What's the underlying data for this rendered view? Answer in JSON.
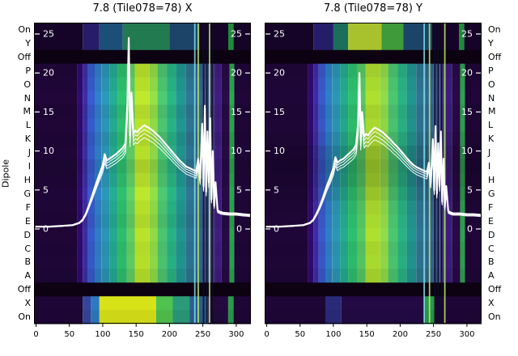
{
  "figure": {
    "background": "#ffffff",
    "dipole_axis_label": "Dipole"
  },
  "chart_data": [
    {
      "type": "heatmap",
      "title": "7.8 (Tile078=78) X",
      "xlabel": "",
      "ylabel": "Dipole",
      "xlim": [
        -3,
        322
      ],
      "x_ticks": [
        0,
        50,
        100,
        150,
        200,
        250,
        300
      ],
      "y_ticks": [
        25,
        20,
        15,
        10,
        5,
        0
      ],
      "line_ylim": [
        -12.2,
        26.5
      ],
      "legend": "none",
      "row_labels": [
        "On",
        "Y",
        "Off",
        "P",
        "O",
        "N",
        "M",
        "L",
        "K",
        "J",
        "I",
        "H",
        "G",
        "F",
        "E",
        "D",
        "C",
        "B",
        "A",
        "Off",
        "X",
        "On"
      ],
      "heat": {
        "off_color": "#0d0212",
        "row_shade": [
          1,
          1,
          1,
          0.95,
          1,
          1.05,
          0.97,
          1.02,
          0.95,
          1,
          0.92,
          0.97,
          1.04,
          1,
          0.96,
          1.02,
          0.98,
          1,
          0.94,
          1,
          1,
          0.95
        ],
        "main_segments": [
          [
            -3,
            62,
            "#1e0636"
          ],
          [
            62,
            70,
            "#2f0a6e"
          ],
          [
            70,
            78,
            "#3a2ba0"
          ],
          [
            78,
            88,
            "#3558c7"
          ],
          [
            88,
            98,
            "#2e7bc0"
          ],
          [
            98,
            110,
            "#2992b0"
          ],
          [
            110,
            122,
            "#23a68c"
          ],
          [
            122,
            136,
            "#2cb96a"
          ],
          [
            136,
            148,
            "#5ec962"
          ],
          [
            148,
            170,
            "#b5de2b"
          ],
          [
            170,
            182,
            "#8ed645"
          ],
          [
            182,
            196,
            "#4ac16d"
          ],
          [
            196,
            210,
            "#28ae80"
          ],
          [
            210,
            224,
            "#21918c"
          ],
          [
            224,
            238,
            "#2c728e"
          ],
          [
            238,
            250,
            "#33628d"
          ],
          [
            250,
            260,
            "#3b518b"
          ],
          [
            260,
            268,
            "#453781"
          ],
          [
            268,
            278,
            "#3d1c7a"
          ],
          [
            278,
            290,
            "#260a44"
          ],
          [
            290,
            297,
            "#2aa04a"
          ],
          [
            297,
            322,
            "#1e0636"
          ]
        ],
        "top_segments": [
          [
            -3,
            70,
            "#160428"
          ],
          [
            70,
            95,
            "#251d68"
          ],
          [
            95,
            130,
            "#1c4f78"
          ],
          [
            130,
            200,
            "#227a50"
          ],
          [
            200,
            245,
            "#1c4468"
          ],
          [
            245,
            288,
            "#160428"
          ],
          [
            288,
            296,
            "#1f8a3a"
          ],
          [
            296,
            322,
            "#160428"
          ]
        ],
        "bottom_segments": [
          [
            -3,
            70,
            "#1e0636"
          ],
          [
            70,
            82,
            "#34459c"
          ],
          [
            82,
            95,
            "#2e79c0"
          ],
          [
            95,
            180,
            "#d8e219"
          ],
          [
            180,
            205,
            "#50c24e"
          ],
          [
            205,
            230,
            "#2a9a7a"
          ],
          [
            230,
            258,
            "#2c5e8e"
          ],
          [
            258,
            288,
            "#22093e"
          ],
          [
            288,
            296,
            "#2a9a4a"
          ],
          [
            296,
            322,
            "#1e0636"
          ]
        ],
        "vlines": [
          [
            238,
            "#7fe0e8"
          ],
          [
            243,
            "#b8f06a"
          ],
          [
            251,
            "#0d0d26"
          ],
          [
            256,
            "#0d0d26"
          ],
          [
            260,
            "#b8f06a"
          ],
          [
            264,
            "#0d0d26"
          ]
        ]
      },
      "line": {
        "color": "#ffffff",
        "bundle": [
          1,
          0.96,
          0.92,
          0.88
        ],
        "x": [
          0,
          20,
          40,
          55,
          65,
          70,
          75,
          80,
          85,
          90,
          95,
          100,
          103,
          106,
          110,
          115,
          120,
          125,
          130,
          134,
          137,
          139,
          141,
          143,
          146,
          149,
          152,
          155,
          158,
          162,
          166,
          170,
          175,
          180,
          185,
          190,
          195,
          200,
          205,
          210,
          215,
          220,
          225,
          230,
          235,
          240,
          243,
          246,
          249,
          251,
          253,
          255,
          257,
          259,
          261,
          263,
          265,
          267,
          269,
          272,
          276,
          280,
          290,
          300,
          310,
          322
        ],
        "y": [
          0.3,
          0.3,
          0.4,
          0.5,
          0.8,
          1.2,
          2,
          3.2,
          4.5,
          5.8,
          7,
          8.2,
          9.6,
          8.8,
          9,
          9.3,
          9.6,
          10,
          10.4,
          11,
          16,
          24.5,
          12,
          17.5,
          12.2,
          12.6,
          12.4,
          12.8,
          13,
          13.3,
          13.1,
          12.9,
          12.6,
          12.2,
          11.8,
          11.3,
          10.8,
          10.3,
          9.8,
          9.3,
          8.8,
          8.4,
          8,
          7.8,
          7.6,
          7.4,
          9,
          6.5,
          13.5,
          5.5,
          15.8,
          4.8,
          12.5,
          6,
          14.2,
          3.8,
          10,
          3,
          6,
          2.4,
          2.2,
          2.1,
          2,
          2,
          1.9,
          1.8
        ]
      }
    },
    {
      "type": "heatmap",
      "title": "7.8 (Tile078=78) Y",
      "xlabel": "",
      "ylabel": "Dipole",
      "xlim": [
        -3,
        322
      ],
      "x_ticks": [
        0,
        50,
        100,
        150,
        200,
        250,
        300
      ],
      "y_ticks": [
        25,
        20,
        15,
        10,
        5,
        0
      ],
      "line_ylim": [
        -12.2,
        26.5
      ],
      "legend": "none",
      "row_labels": [
        "On",
        "Y",
        "Off",
        "P",
        "O",
        "N",
        "M",
        "L",
        "K",
        "J",
        "I",
        "H",
        "G",
        "F",
        "E",
        "D",
        "C",
        "B",
        "A",
        "Off",
        "X",
        "On"
      ],
      "heat": {
        "off_color": "#0d0212",
        "row_shade": [
          1,
          1,
          1,
          0.95,
          1,
          1.03,
          0.97,
          1,
          0.93,
          0.84,
          0.8,
          0.83,
          0.9,
          0.97,
          1,
          1.03,
          0.98,
          1,
          0.94,
          1,
          1,
          0.95
        ],
        "main_segments": [
          [
            -3,
            62,
            "#1e0636"
          ],
          [
            62,
            70,
            "#2f0a6e"
          ],
          [
            70,
            78,
            "#3a2ba0"
          ],
          [
            78,
            88,
            "#3558c7"
          ],
          [
            88,
            98,
            "#2e7bc0"
          ],
          [
            98,
            110,
            "#2992b0"
          ],
          [
            110,
            122,
            "#23a68c"
          ],
          [
            122,
            136,
            "#2cb96a"
          ],
          [
            136,
            148,
            "#55c261"
          ],
          [
            148,
            170,
            "#a8d92e"
          ],
          [
            170,
            182,
            "#8ed645"
          ],
          [
            182,
            196,
            "#4ac16d"
          ],
          [
            196,
            210,
            "#28ae80"
          ],
          [
            210,
            224,
            "#21918c"
          ],
          [
            224,
            238,
            "#2c728e"
          ],
          [
            238,
            250,
            "#33628d"
          ],
          [
            250,
            260,
            "#3b518b"
          ],
          [
            260,
            268,
            "#453781"
          ],
          [
            268,
            278,
            "#3d1c7a"
          ],
          [
            278,
            290,
            "#260a44"
          ],
          [
            290,
            297,
            "#2aa04a"
          ],
          [
            297,
            322,
            "#1e0636"
          ]
        ],
        "top_segments": [
          [
            -3,
            70,
            "#160428"
          ],
          [
            70,
            100,
            "#251d68"
          ],
          [
            100,
            122,
            "#1c6e5a"
          ],
          [
            122,
            172,
            "#a8c22e"
          ],
          [
            172,
            205,
            "#3f9a3a"
          ],
          [
            205,
            248,
            "#1c4468"
          ],
          [
            248,
            288,
            "#160428"
          ],
          [
            288,
            296,
            "#1f8a3a"
          ],
          [
            296,
            322,
            "#160428"
          ]
        ],
        "bottom_segments": [
          [
            -3,
            88,
            "#1e0636"
          ],
          [
            88,
            112,
            "#2a2a7a"
          ],
          [
            112,
            236,
            "#230a44"
          ],
          [
            236,
            252,
            "#2a9a4a"
          ],
          [
            252,
            322,
            "#1e0636"
          ]
        ],
        "vlines": [
          [
            236,
            "#7fe0e8"
          ],
          [
            244,
            "#b8f06a"
          ],
          [
            252,
            "#0d0d26"
          ],
          [
            257,
            "#0d0d26"
          ],
          [
            262,
            "#0d0d26"
          ],
          [
            267,
            "#b8f06a"
          ]
        ]
      },
      "line": {
        "color": "#ffffff",
        "bundle": [
          1,
          0.96,
          0.92,
          0.88
        ],
        "x": [
          0,
          20,
          40,
          55,
          65,
          70,
          75,
          80,
          85,
          90,
          95,
          100,
          103,
          106,
          110,
          115,
          120,
          125,
          130,
          134,
          137,
          139,
          141,
          143,
          146,
          149,
          152,
          155,
          158,
          162,
          166,
          170,
          175,
          180,
          185,
          190,
          195,
          200,
          205,
          210,
          215,
          220,
          225,
          230,
          235,
          240,
          243,
          246,
          249,
          251,
          253,
          255,
          257,
          259,
          261,
          263,
          265,
          267,
          269,
          272,
          276,
          280,
          290,
          300,
          310,
          322
        ],
        "y": [
          0.3,
          0.3,
          0.4,
          0.5,
          0.8,
          1.2,
          2,
          3,
          4.2,
          5.5,
          6.6,
          7.8,
          9.2,
          8.5,
          8.8,
          9,
          9.4,
          9.8,
          10.2,
          10.8,
          13.5,
          20,
          11.5,
          15,
          11.8,
          12.2,
          12,
          12.4,
          12.7,
          13,
          12.8,
          12.6,
          12.3,
          11.9,
          11.5,
          11,
          10.6,
          10.1,
          9.6,
          9.1,
          8.6,
          8.2,
          7.9,
          7.7,
          7.5,
          7.3,
          8.5,
          6,
          11.5,
          5,
          13.2,
          4.5,
          11,
          5.5,
          12.5,
          3.5,
          9,
          2.8,
          5.5,
          2.3,
          2.1,
          2,
          2,
          1.9,
          1.9,
          1.8
        ]
      }
    }
  ]
}
